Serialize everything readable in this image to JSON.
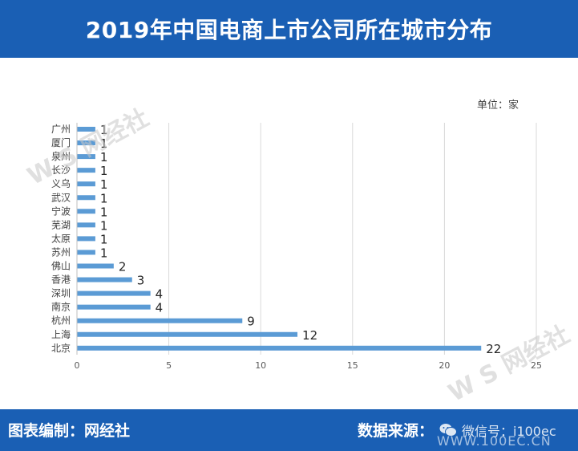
{
  "header": {
    "title": "2019年中国电商上市公司所在城市分布"
  },
  "footer": {
    "credit": "图表编制：网经社",
    "source": "数据来源：",
    "wechat_label": "微信号：i100ec",
    "url": "WWW.100EC.CN"
  },
  "watermark": {
    "text": "W S 网经社"
  },
  "chart_data": {
    "type": "bar",
    "orientation": "horizontal",
    "title": "2019年中国电商上市公司所在城市分布",
    "unit_label": "单位：家",
    "categories": [
      "广州",
      "厦门",
      "泉州",
      "长沙",
      "义乌",
      "武汉",
      "宁波",
      "芜湖",
      "太原",
      "苏州",
      "佛山",
      "香港",
      "深圳",
      "南京",
      "杭州",
      "上海",
      "北京"
    ],
    "values": [
      1,
      1,
      1,
      1,
      1,
      1,
      1,
      1,
      1,
      1,
      2,
      3,
      4,
      4,
      9,
      12,
      22
    ],
    "xlim": [
      0,
      25
    ],
    "xticks": [
      0,
      5,
      10,
      15,
      20,
      25
    ],
    "grid": true,
    "bar_color": "#5b9bd5",
    "label_font_size": 15
  },
  "colors": {
    "brand": "#1a5fb4",
    "bar": "#5b9bd5",
    "grid": "#d9d9d9"
  }
}
